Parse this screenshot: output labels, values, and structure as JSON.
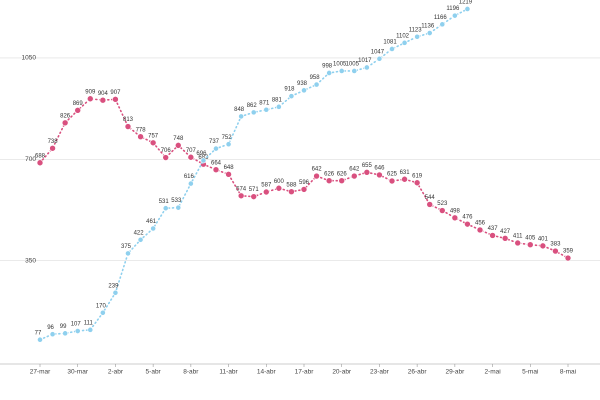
{
  "chart_data": {
    "type": "line",
    "categories": [
      "27-mar",
      null,
      null,
      "30-mar",
      null,
      null,
      "2-abr",
      null,
      null,
      "5-abr",
      null,
      null,
      "8-abr",
      null,
      null,
      "11-abr",
      null,
      null,
      "14-abr",
      null,
      null,
      "17-abr",
      null,
      null,
      "20-abr",
      null,
      null,
      "23-abr",
      null,
      null,
      "26-abr",
      null,
      null,
      "29-abr",
      null,
      null,
      "2-mai",
      null,
      null,
      "5-mai",
      null,
      null,
      "8-mai"
    ],
    "series": [
      {
        "color": "#d9507f",
        "values": [
          688,
          738,
          826,
          869,
          909,
          904,
          907,
          813,
          778,
          757,
          706,
          748,
          707,
          683,
          664,
          648,
          574,
          571,
          587,
          600,
          588,
          596,
          642,
          626,
          626,
          642,
          655,
          646,
          625,
          631,
          619,
          544,
          523,
          498,
          476,
          456,
          437,
          427,
          411,
          405,
          401,
          383,
          359
        ]
      },
      {
        "color": "#8fd0ee",
        "values": [
          77,
          96,
          99,
          107,
          111,
          170,
          239,
          375,
          422,
          461,
          531,
          533,
          616,
          696,
          737,
          752,
          848,
          862,
          871,
          881,
          918,
          938,
          958,
          998,
          1005,
          1005,
          1017,
          1047,
          1081,
          1102,
          1123,
          1136,
          1166,
          1196,
          1219,
          null,
          null,
          null,
          null,
          null,
          null,
          null,
          null
        ]
      }
    ],
    "ylim": [
      0,
      1250
    ],
    "yticks": [
      350,
      700,
      1050
    ],
    "grid": true
  }
}
